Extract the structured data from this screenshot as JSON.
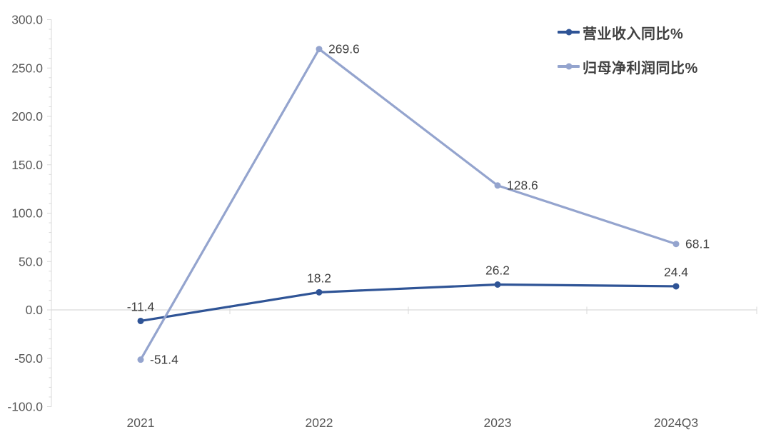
{
  "chart_data": {
    "type": "line",
    "title": "",
    "categories": [
      "2021",
      "2022",
      "2023",
      "2024Q3"
    ],
    "series": [
      {
        "name": "营业收入同比%",
        "values": [
          -11.4,
          18.2,
          26.2,
          24.4
        ],
        "labels": [
          "-11.4",
          "18.2",
          "26.2",
          "24.4"
        ],
        "color": "#2F5496",
        "label_position": "above"
      },
      {
        "name": "归母净利润同比%",
        "values": [
          -51.4,
          269.6,
          128.6,
          68.1
        ],
        "labels": [
          "-51.4",
          "269.6",
          "128.6",
          "68.1"
        ],
        "color": "#94A4CE",
        "label_position": "right"
      }
    ],
    "ylim": [
      -100,
      300
    ],
    "ytick_step": 50,
    "ytick_labels": [
      "300.0",
      "250.0",
      "200.0",
      "150.0",
      "100.0",
      "50.0",
      "0.0",
      "-50.0",
      "-100.0"
    ],
    "minor_tick_step": 10,
    "grid": "zero-line-only",
    "legend_position": "top-right",
    "colors": {
      "axis": "#D9D9D9",
      "tick_label": "#595959",
      "data_label": "#404040",
      "background": "#FFFFFF"
    }
  }
}
